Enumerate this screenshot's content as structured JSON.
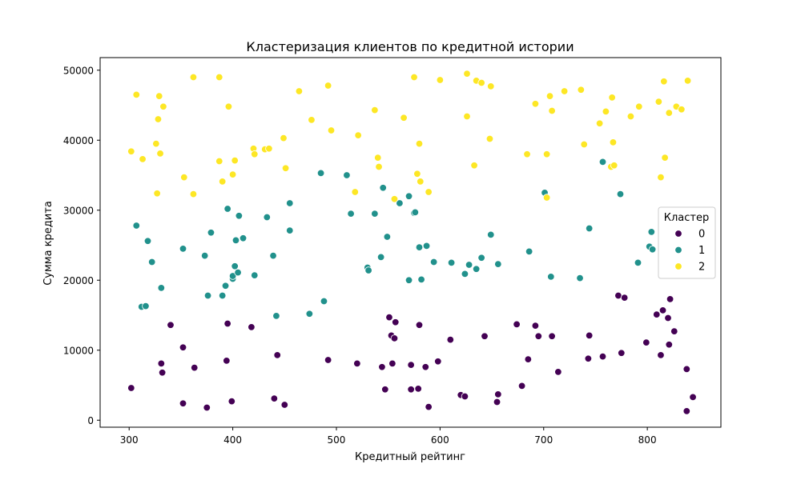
{
  "chart_data": {
    "type": "scatter",
    "title": "Кластеризация клиентов по кредитной истории",
    "xlabel": "Кредитный рейтинг",
    "ylabel": "Сумма кредита",
    "xlim": [
      272,
      871
    ],
    "ylim": [
      -1000,
      51800
    ],
    "xticks": [
      300,
      400,
      500,
      600,
      700,
      800
    ],
    "yticks": [
      0,
      10000,
      20000,
      30000,
      40000,
      50000
    ],
    "grid": false,
    "legend": {
      "title": "Кластер",
      "position": "center-right"
    },
    "series": [
      {
        "name": "0",
        "color": "#440154",
        "points": [
          [
            302,
            4600
          ],
          [
            331,
            8100
          ],
          [
            332,
            6800
          ],
          [
            340,
            13600
          ],
          [
            352,
            10400
          ],
          [
            352,
            2400
          ],
          [
            363,
            7500
          ],
          [
            375,
            1800
          ],
          [
            394,
            8500
          ],
          [
            395,
            13800
          ],
          [
            399,
            2700
          ],
          [
            418,
            13300
          ],
          [
            440,
            3100
          ],
          [
            443,
            9300
          ],
          [
            450,
            2200
          ],
          [
            492,
            8600
          ],
          [
            520,
            8100
          ],
          [
            544,
            7600
          ],
          [
            547,
            4400
          ],
          [
            551,
            14700
          ],
          [
            553,
            12100
          ],
          [
            554,
            8100
          ],
          [
            556,
            11700
          ],
          [
            557,
            14000
          ],
          [
            572,
            4400
          ],
          [
            572,
            7900
          ],
          [
            579,
            4500
          ],
          [
            580,
            13600
          ],
          [
            586,
            7600
          ],
          [
            589,
            1900
          ],
          [
            598,
            8400
          ],
          [
            610,
            11500
          ],
          [
            620,
            3600
          ],
          [
            624,
            3400
          ],
          [
            643,
            12000
          ],
          [
            655,
            2600
          ],
          [
            656,
            3700
          ],
          [
            674,
            13700
          ],
          [
            679,
            4900
          ],
          [
            685,
            8700
          ],
          [
            692,
            13500
          ],
          [
            695,
            12000
          ],
          [
            708,
            12000
          ],
          [
            714,
            6900
          ],
          [
            743,
            8800
          ],
          [
            744,
            12100
          ],
          [
            757,
            9100
          ],
          [
            772,
            17800
          ],
          [
            775,
            9600
          ],
          [
            778,
            17500
          ],
          [
            799,
            11100
          ],
          [
            809,
            15100
          ],
          [
            813,
            9300
          ],
          [
            815,
            15700
          ],
          [
            820,
            14600
          ],
          [
            821,
            10800
          ],
          [
            822,
            17300
          ],
          [
            826,
            12700
          ],
          [
            838,
            7300
          ],
          [
            838,
            1300
          ],
          [
            844,
            3300
          ]
        ]
      },
      {
        "name": "1",
        "color": "#21918c",
        "points": [
          [
            307,
            27800
          ],
          [
            312,
            16200
          ],
          [
            316,
            16300
          ],
          [
            318,
            25600
          ],
          [
            322,
            22600
          ],
          [
            331,
            18900
          ],
          [
            352,
            24500
          ],
          [
            373,
            23500
          ],
          [
            376,
            17800
          ],
          [
            379,
            26800
          ],
          [
            390,
            17800
          ],
          [
            393,
            19200
          ],
          [
            395,
            30200
          ],
          [
            400,
            20200
          ],
          [
            400,
            20600
          ],
          [
            402,
            22000
          ],
          [
            403,
            25700
          ],
          [
            405,
            21100
          ],
          [
            406,
            29200
          ],
          [
            410,
            26000
          ],
          [
            421,
            20700
          ],
          [
            433,
            29000
          ],
          [
            439,
            23500
          ],
          [
            442,
            14900
          ],
          [
            455,
            31000
          ],
          [
            455,
            27100
          ],
          [
            474,
            15200
          ],
          [
            485,
            35300
          ],
          [
            488,
            17000
          ],
          [
            510,
            35000
          ],
          [
            514,
            29500
          ],
          [
            530,
            21800
          ],
          [
            531,
            21400
          ],
          [
            537,
            29500
          ],
          [
            543,
            23300
          ],
          [
            545,
            33200
          ],
          [
            549,
            26200
          ],
          [
            561,
            31000
          ],
          [
            570,
            32000
          ],
          [
            570,
            20000
          ],
          [
            575,
            29600
          ],
          [
            576,
            29700
          ],
          [
            580,
            24700
          ],
          [
            582,
            20100
          ],
          [
            587,
            24900
          ],
          [
            594,
            22600
          ],
          [
            611,
            22500
          ],
          [
            624,
            20900
          ],
          [
            628,
            22200
          ],
          [
            635,
            21600
          ],
          [
            640,
            23200
          ],
          [
            649,
            26500
          ],
          [
            656,
            22300
          ],
          [
            686,
            24100
          ],
          [
            701,
            32500
          ],
          [
            707,
            20500
          ],
          [
            735,
            20300
          ],
          [
            744,
            27400
          ],
          [
            757,
            36900
          ],
          [
            774,
            32300
          ],
          [
            791,
            22500
          ],
          [
            802,
            24800
          ],
          [
            804,
            26900
          ],
          [
            805,
            24400
          ]
        ]
      },
      {
        "name": "2",
        "color": "#fde725",
        "points": [
          [
            302,
            38400
          ],
          [
            307,
            46500
          ],
          [
            313,
            37300
          ],
          [
            326,
            39500
          ],
          [
            327,
            32400
          ],
          [
            328,
            43000
          ],
          [
            329,
            46300
          ],
          [
            330,
            38100
          ],
          [
            333,
            44800
          ],
          [
            353,
            34700
          ],
          [
            362,
            32300
          ],
          [
            362,
            49000
          ],
          [
            387,
            37000
          ],
          [
            387,
            49000
          ],
          [
            390,
            34100
          ],
          [
            396,
            44800
          ],
          [
            400,
            35100
          ],
          [
            402,
            37100
          ],
          [
            420,
            38800
          ],
          [
            421,
            38000
          ],
          [
            431,
            38700
          ],
          [
            435,
            38800
          ],
          [
            449,
            40300
          ],
          [
            451,
            36000
          ],
          [
            464,
            47000
          ],
          [
            476,
            42900
          ],
          [
            492,
            47800
          ],
          [
            495,
            41400
          ],
          [
            518,
            32600
          ],
          [
            521,
            40700
          ],
          [
            537,
            44300
          ],
          [
            540,
            37500
          ],
          [
            541,
            36200
          ],
          [
            556,
            31600
          ],
          [
            565,
            43200
          ],
          [
            575,
            49000
          ],
          [
            578,
            35200
          ],
          [
            580,
            39500
          ],
          [
            581,
            34100
          ],
          [
            589,
            32600
          ],
          [
            600,
            48600
          ],
          [
            626,
            49500
          ],
          [
            626,
            43400
          ],
          [
            633,
            36400
          ],
          [
            635,
            48500
          ],
          [
            640,
            48200
          ],
          [
            648,
            40200
          ],
          [
            649,
            47700
          ],
          [
            684,
            38000
          ],
          [
            692,
            45200
          ],
          [
            703,
            31800
          ],
          [
            703,
            38000
          ],
          [
            706,
            46300
          ],
          [
            708,
            44200
          ],
          [
            720,
            47000
          ],
          [
            736,
            47200
          ],
          [
            739,
            39400
          ],
          [
            754,
            42400
          ],
          [
            760,
            44100
          ],
          [
            765,
            36200
          ],
          [
            766,
            46100
          ],
          [
            767,
            39700
          ],
          [
            768,
            36400
          ],
          [
            784,
            43400
          ],
          [
            792,
            44800
          ],
          [
            811,
            45500
          ],
          [
            813,
            34700
          ],
          [
            816,
            48400
          ],
          [
            817,
            37500
          ],
          [
            821,
            43900
          ],
          [
            828,
            44800
          ],
          [
            833,
            44400
          ],
          [
            839,
            48500
          ]
        ]
      }
    ]
  }
}
